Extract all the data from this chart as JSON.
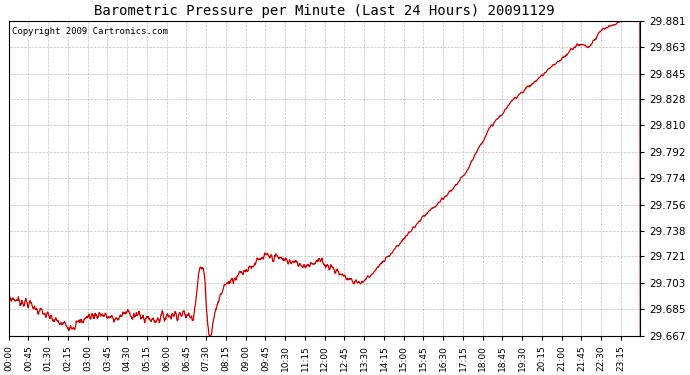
{
  "title": "Barometric Pressure per Minute (Last 24 Hours) 20091129",
  "copyright": "Copyright 2009 Cartronics.com",
  "line_color": "#cc0000",
  "background_color": "#ffffff",
  "grid_color": "#b0b0b0",
  "y_ticks": [
    29.667,
    29.685,
    29.703,
    29.721,
    29.738,
    29.756,
    29.774,
    29.792,
    29.81,
    29.828,
    29.845,
    29.863,
    29.881
  ],
  "x_tick_labels": [
    "00:00",
    "00:45",
    "01:30",
    "02:15",
    "03:00",
    "03:45",
    "04:30",
    "05:15",
    "06:00",
    "06:45",
    "07:30",
    "08:15",
    "09:00",
    "09:45",
    "10:30",
    "11:15",
    "12:00",
    "12:45",
    "13:30",
    "14:15",
    "15:00",
    "15:45",
    "16:30",
    "17:15",
    "18:00",
    "18:45",
    "19:30",
    "20:15",
    "21:00",
    "21:45",
    "22:30",
    "23:15"
  ],
  "y_min": 29.667,
  "y_max": 29.881,
  "num_points": 1440,
  "figwidth": 6.9,
  "figheight": 3.75,
  "dpi": 100
}
